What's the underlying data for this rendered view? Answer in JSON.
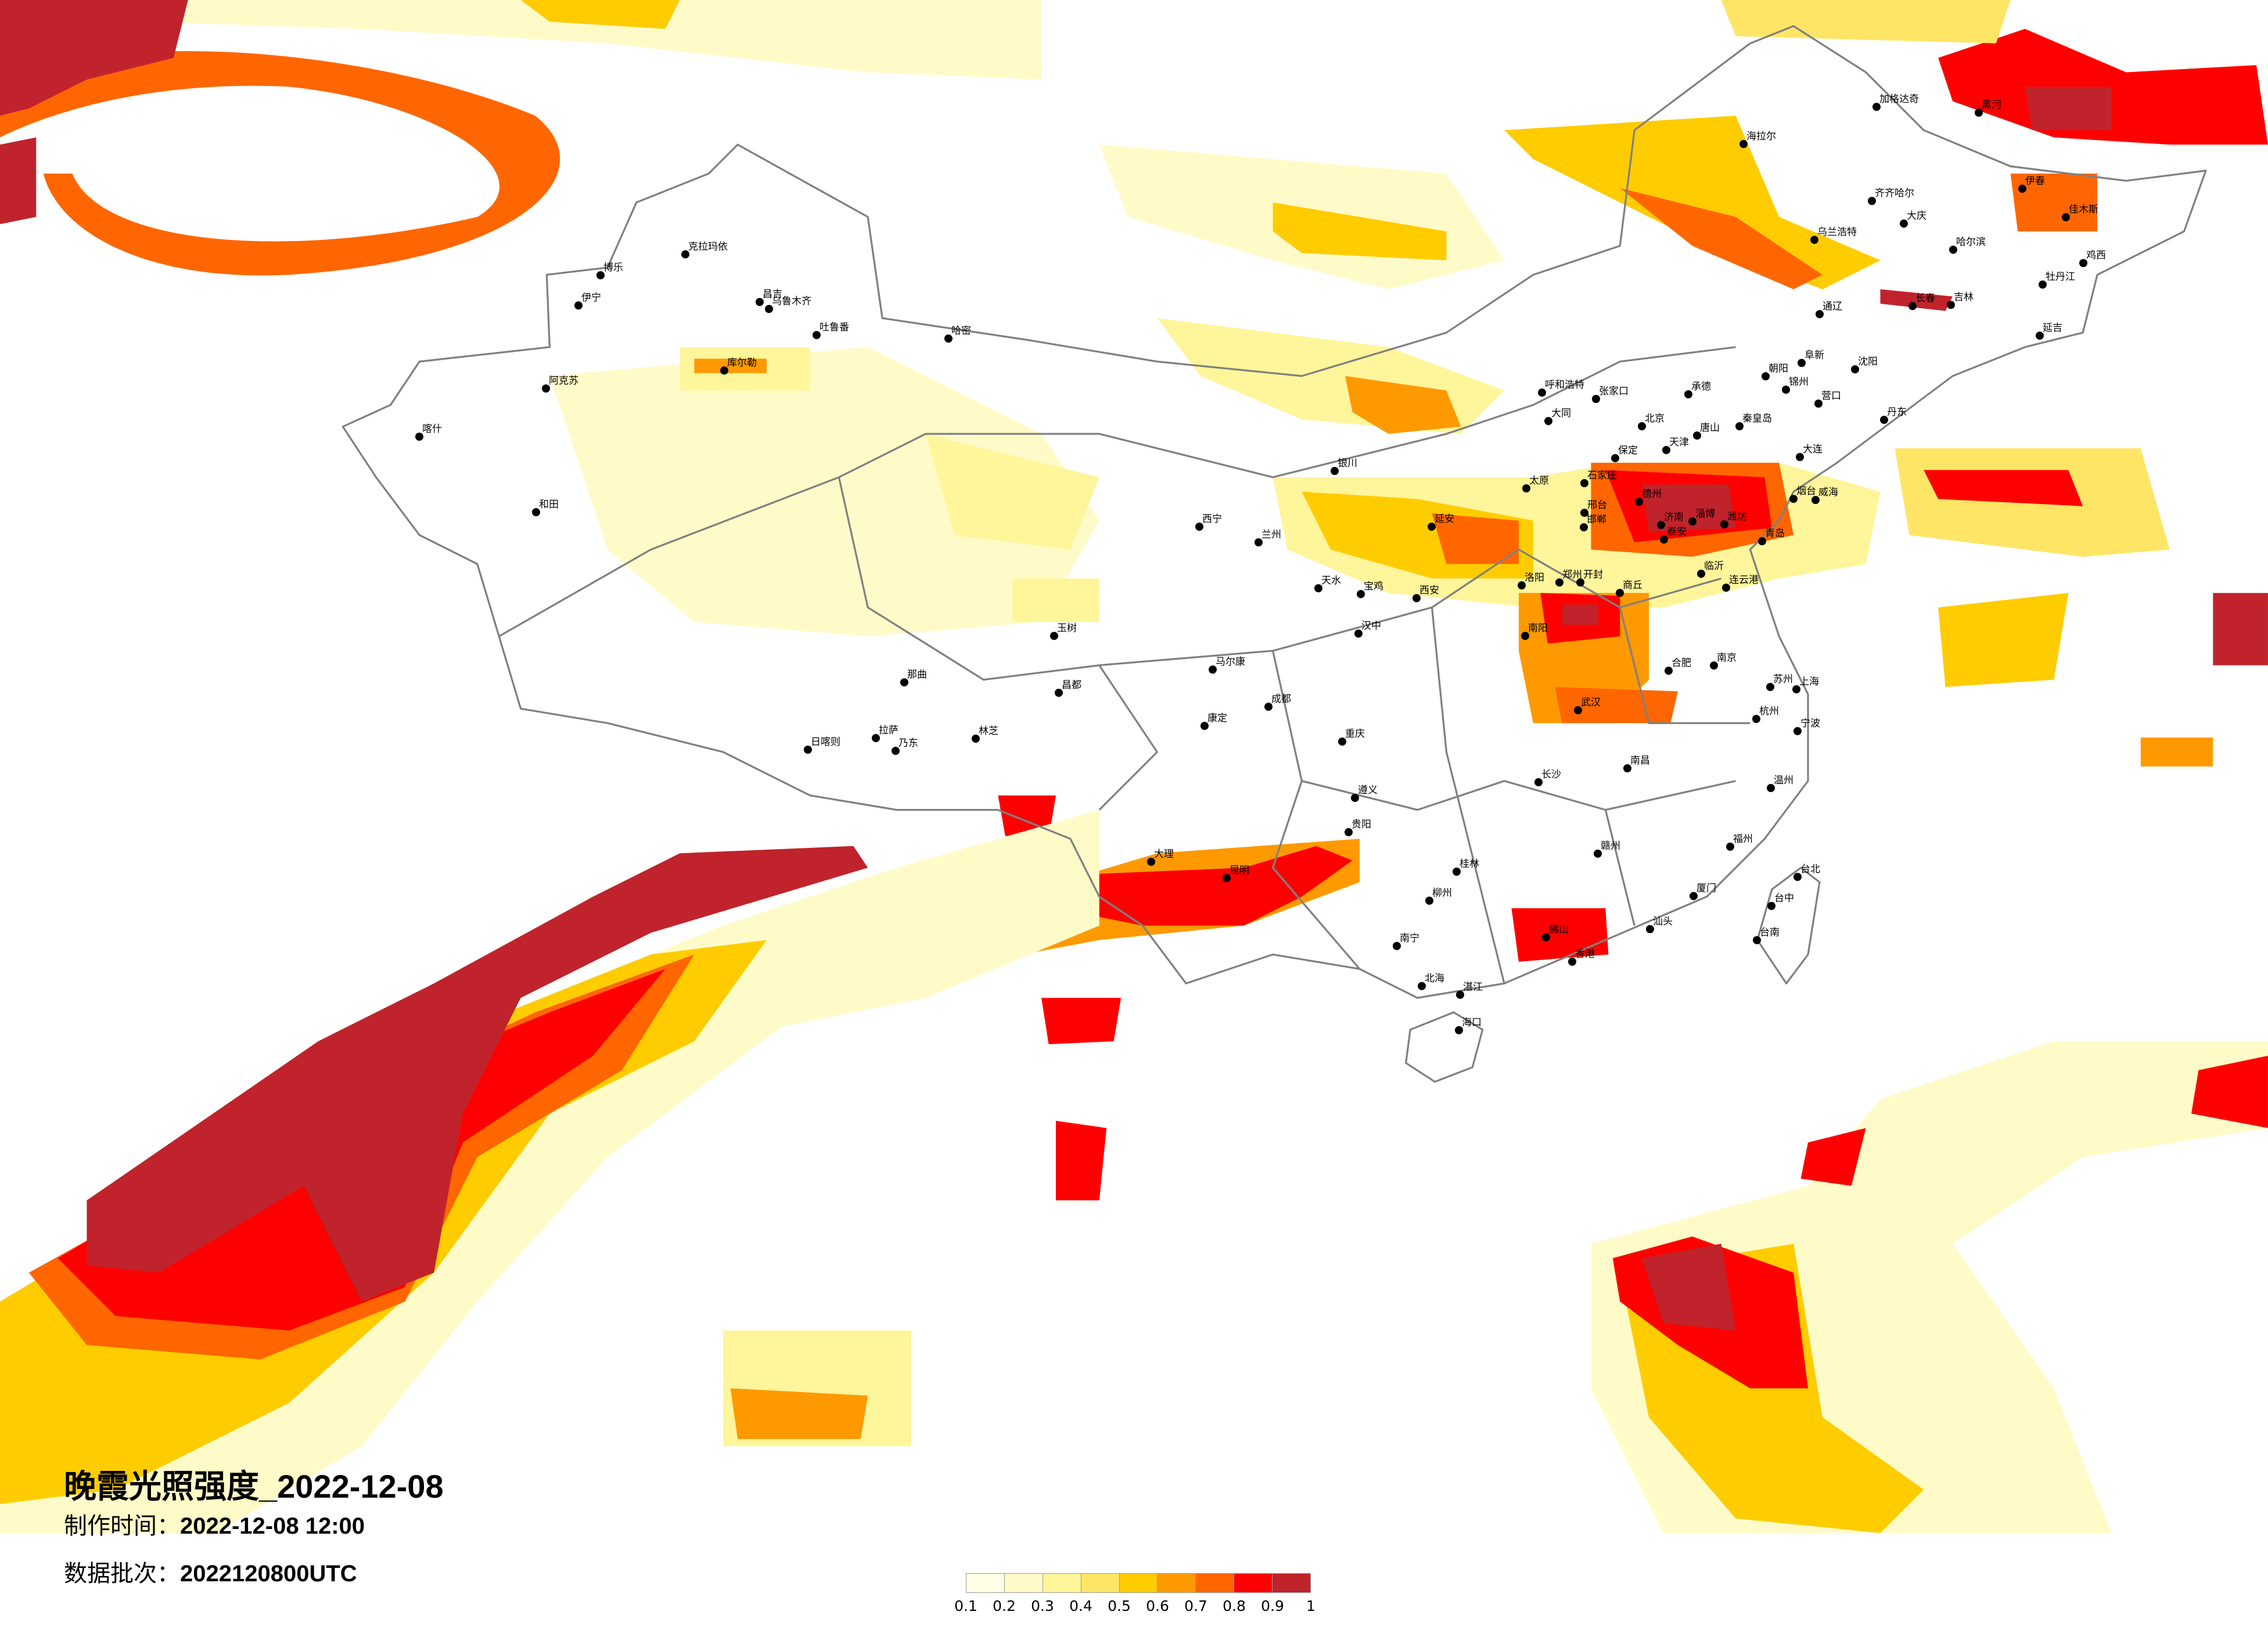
{
  "title": "晚霞光照强度_2022-12-08",
  "production_time": {
    "label": "制作时间：",
    "value": "2022-12-08 12:00"
  },
  "data_batch": {
    "label": "数据批次：",
    "value": "2022120800UTC"
  },
  "legend": {
    "labels": [
      "0.1",
      "0.2",
      "0.3",
      "0.4",
      "0.5",
      "0.6",
      "0.7",
      "0.8",
      "0.9",
      "1"
    ],
    "colors": [
      "#FFFEE6",
      "#FFFBC8",
      "#FFF59A",
      "#FFE566",
      "#FFCC00",
      "#FF9900",
      "#FF6600",
      "#FF0000",
      "#C0232B"
    ]
  },
  "cities": [
    "北京",
    "天津",
    "石家庄",
    "济南",
    "青岛",
    "大连",
    "沈阳",
    "郑州",
    "唐山",
    "保定",
    "秦皇岛",
    "承德",
    "张家口",
    "大同",
    "烟台",
    "威海",
    "潍坊",
    "淄博",
    "泰安",
    "德州",
    "邯郸",
    "邢台",
    "洛阳",
    "开封",
    "临沂",
    "连云港",
    "商丘",
    "南阳",
    "丹东",
    "营口",
    "锦州",
    "朝阳",
    "阜新",
    "呼和浩特",
    "太原",
    "克拉玛依",
    "博乐",
    "伊宁",
    "昌吉",
    "乌鲁木齐",
    "吐鲁番",
    "哈密",
    "库尔勒",
    "阿克苏",
    "和田",
    "喀什",
    "成都",
    "重庆",
    "贵阳",
    "昆明",
    "南宁",
    "长沙",
    "南昌",
    "杭州",
    "福州",
    "佛山",
    "香港",
    "海口",
    "台北",
    "桂林",
    "武汉",
    "厦门",
    "汕头",
    "大理",
    "温州",
    "宁波",
    "赣州",
    "遵义",
    "柳州",
    "湛江",
    "北海",
    "台中",
    "台南",
    "西安",
    "兰州",
    "西宁",
    "银川",
    "合肥",
    "南京",
    "上海",
    "延安",
    "宝鸡",
    "汉中",
    "天水",
    "苏州",
    "哈尔滨",
    "长春",
    "吉林",
    "齐齐哈尔",
    "大庆",
    "牡丹江",
    "佳木斯",
    "黑河",
    "加格达奇",
    "海拉尔",
    "鸡西",
    "伊春",
    "延吉",
    "乌兰浩特",
    "通辽",
    "拉萨",
    "日喀则",
    "那曲",
    "昌都",
    "玉树",
    "林芝",
    "乃东",
    "马尔康",
    "康定"
  ]
}
